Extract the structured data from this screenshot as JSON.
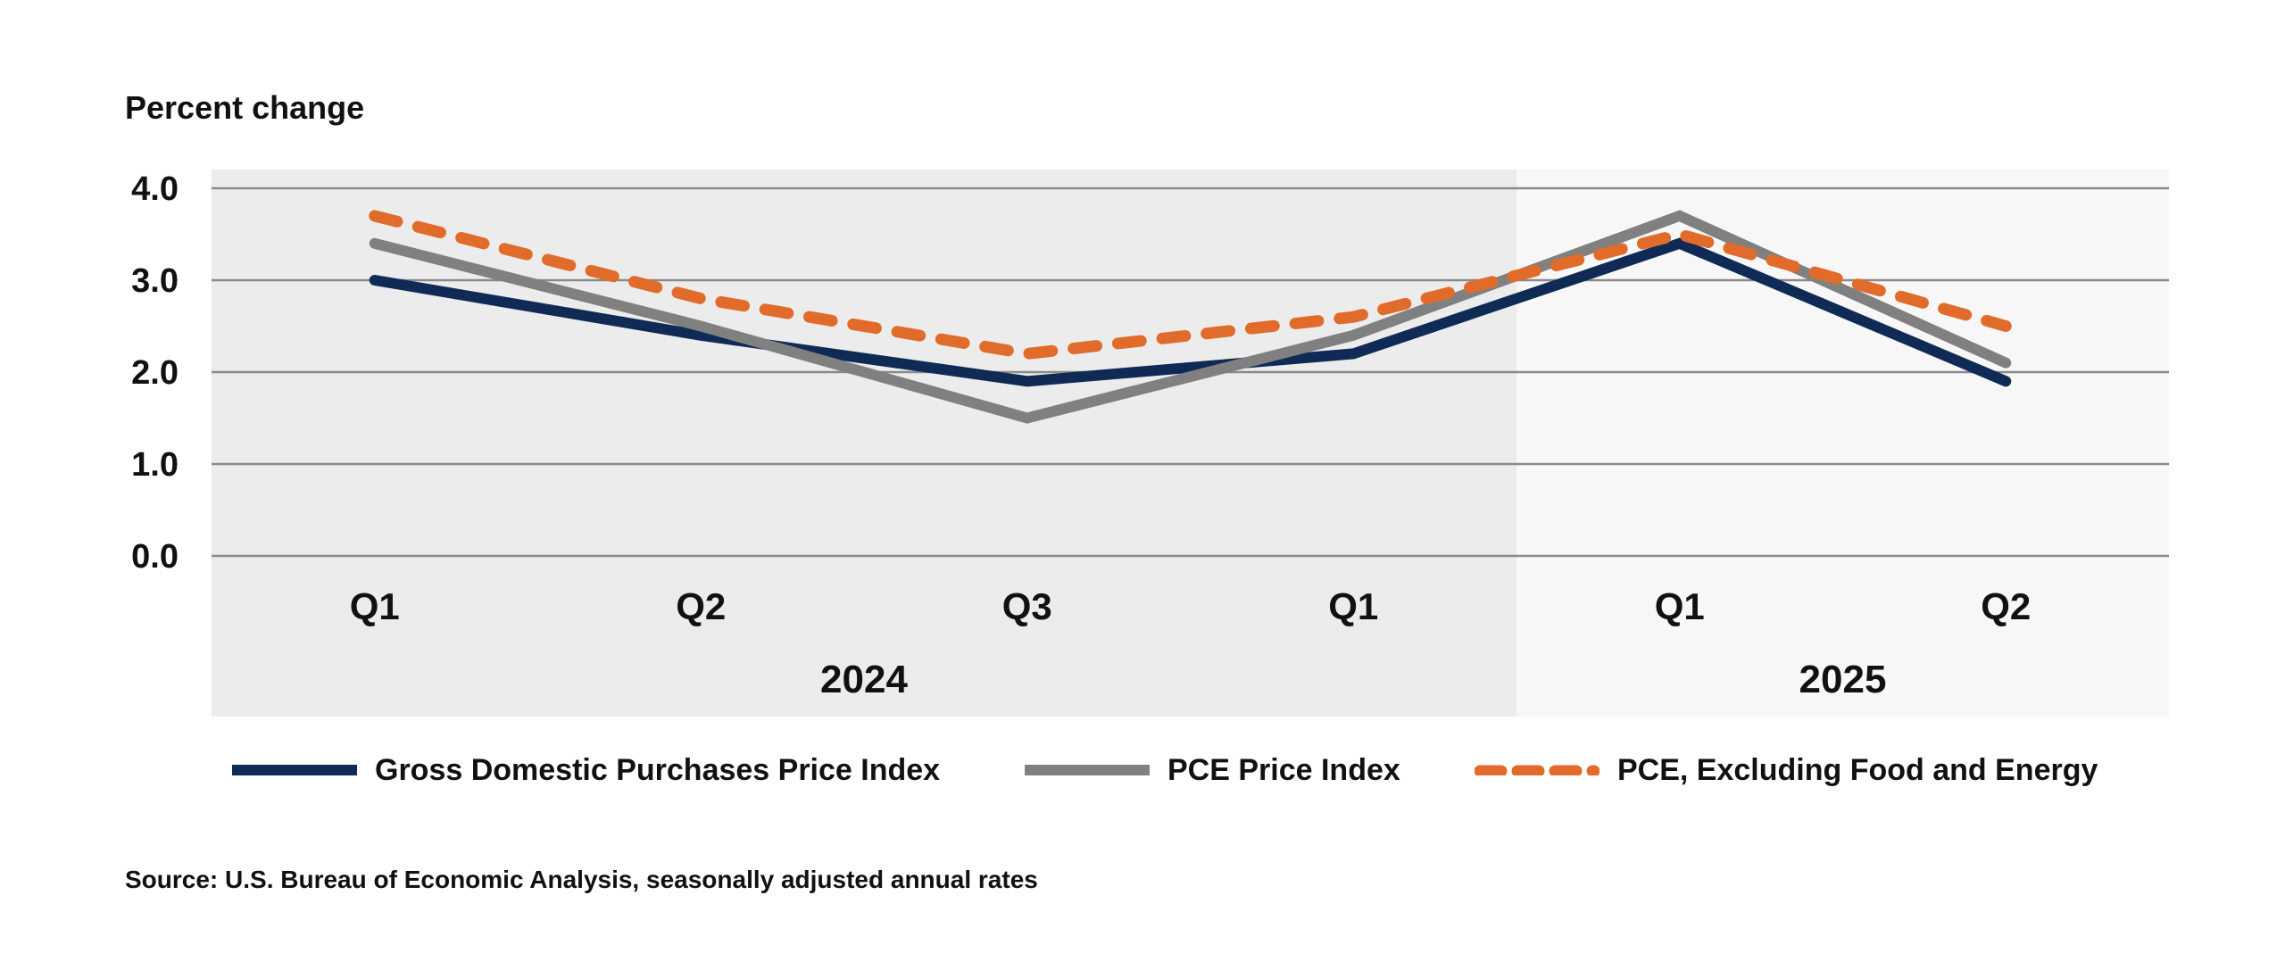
{
  "chart_data": {
    "type": "line",
    "ylabel": "Percent change",
    "xlabel": "",
    "ylim": [
      0.0,
      4.0
    ],
    "yticks": [
      "4.0",
      "3.0",
      "2.0",
      "1.0",
      "0.0"
    ],
    "ytick_values": [
      4.0,
      3.0,
      2.0,
      1.0,
      0.0
    ],
    "grid": true,
    "categories": [
      "Q1",
      "Q2",
      "Q3",
      "Q1",
      "Q1",
      "Q2"
    ],
    "year_groups": [
      {
        "label": "2024",
        "span": [
          0,
          3
        ],
        "shade": "#ececec"
      },
      {
        "label": "2025",
        "span": [
          4,
          5
        ],
        "shade": "#f7f7f7"
      }
    ],
    "series": [
      {
        "name": "Gross Domestic Purchases Price Index",
        "color": "#0f2b55",
        "dash": "solid",
        "values": [
          3.0,
          2.4,
          1.9,
          2.2,
          3.4,
          1.9
        ]
      },
      {
        "name": "PCE Price Index",
        "color": "#808080",
        "dash": "solid",
        "values": [
          3.4,
          2.5,
          1.5,
          2.4,
          3.7,
          2.1
        ]
      },
      {
        "name": "PCE, Excluding Food and Energy",
        "color": "#e06b2a",
        "dash": "dashed",
        "values": [
          3.7,
          2.8,
          2.2,
          2.6,
          3.5,
          2.5
        ]
      }
    ],
    "legend": "bottom",
    "source": "Source: U.S. Bureau of Economic Analysis, seasonally adjusted annual rates"
  }
}
